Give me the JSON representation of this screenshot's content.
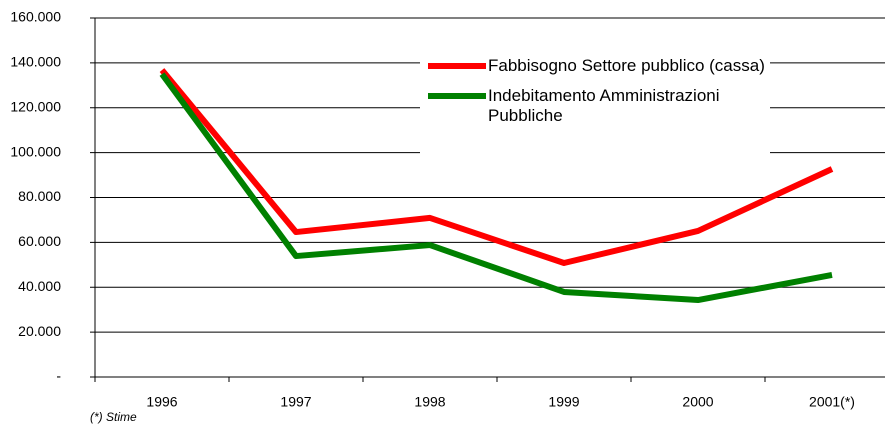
{
  "chart_data": {
    "type": "line",
    "categories": [
      "1996",
      "1997",
      "1998",
      "1999",
      "2000",
      "2001(*)"
    ],
    "series": [
      {
        "name": "Fabbisogno Settore pubblico (cassa)",
        "color": "#ff0000",
        "values": [
          136800,
          64600,
          70900,
          50800,
          65100,
          92700
        ]
      },
      {
        "name": "Indebitamento Amministrazioni Pubbliche",
        "color": "#008000",
        "values": [
          135000,
          53900,
          58800,
          37900,
          34300,
          45500
        ]
      }
    ],
    "ylim": [
      0,
      160000
    ],
    "yticks": [
      {
        "value": 0,
        "label": "-"
      },
      {
        "value": 20000,
        "label": "20.000"
      },
      {
        "value": 40000,
        "label": "40.000"
      },
      {
        "value": 60000,
        "label": "60.000"
      },
      {
        "value": 80000,
        "label": "80.000"
      },
      {
        "value": 100000,
        "label": "100.000"
      },
      {
        "value": 120000,
        "label": "120.000"
      },
      {
        "value": 140000,
        "label": "140.000"
      },
      {
        "value": 160000,
        "label": "160.000"
      }
    ],
    "grid": true,
    "note": "(*) Stime"
  }
}
